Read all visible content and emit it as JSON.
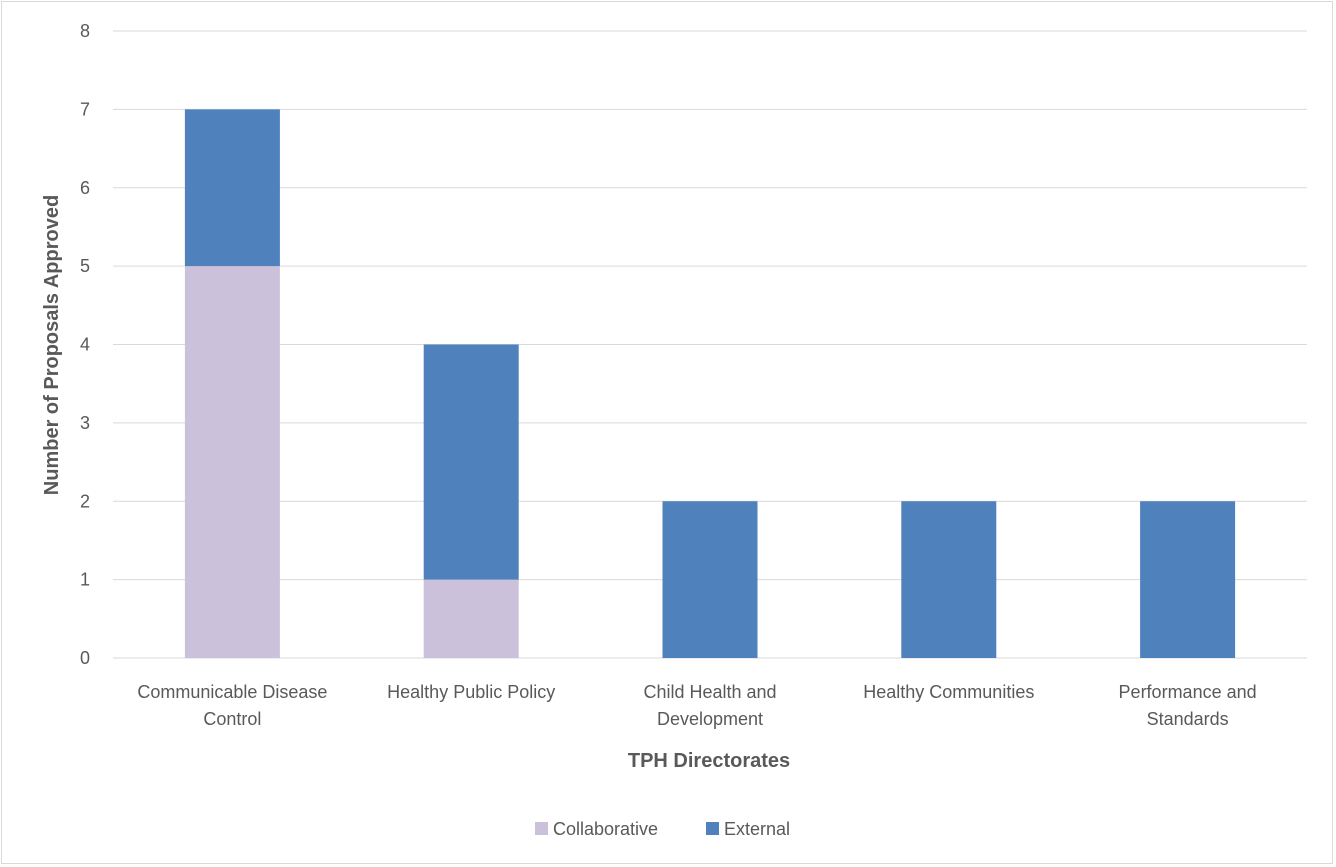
{
  "chart_data": {
    "type": "bar",
    "stacked": true,
    "categories": [
      [
        "Communicable Disease",
        "Control"
      ],
      [
        "Healthy Public Policy"
      ],
      [
        "Child Health and",
        "Development"
      ],
      [
        "Healthy Communities"
      ],
      [
        "Performance and",
        "Standards"
      ]
    ],
    "series": [
      {
        "name": "Collaborative",
        "values": [
          5,
          1,
          0,
          0,
          0
        ],
        "color": "#ccc1da"
      },
      {
        "name": "External",
        "values": [
          2,
          3,
          2,
          2,
          2
        ],
        "color": "#4f81bd"
      }
    ],
    "xlabel": "TPH Directorates",
    "ylabel": "Number of Proposals Approved",
    "ylim": [
      0,
      8
    ],
    "yticks": [
      0,
      1,
      2,
      3,
      4,
      5,
      6,
      7,
      8
    ],
    "grid": true,
    "legend_position": "bottom"
  }
}
